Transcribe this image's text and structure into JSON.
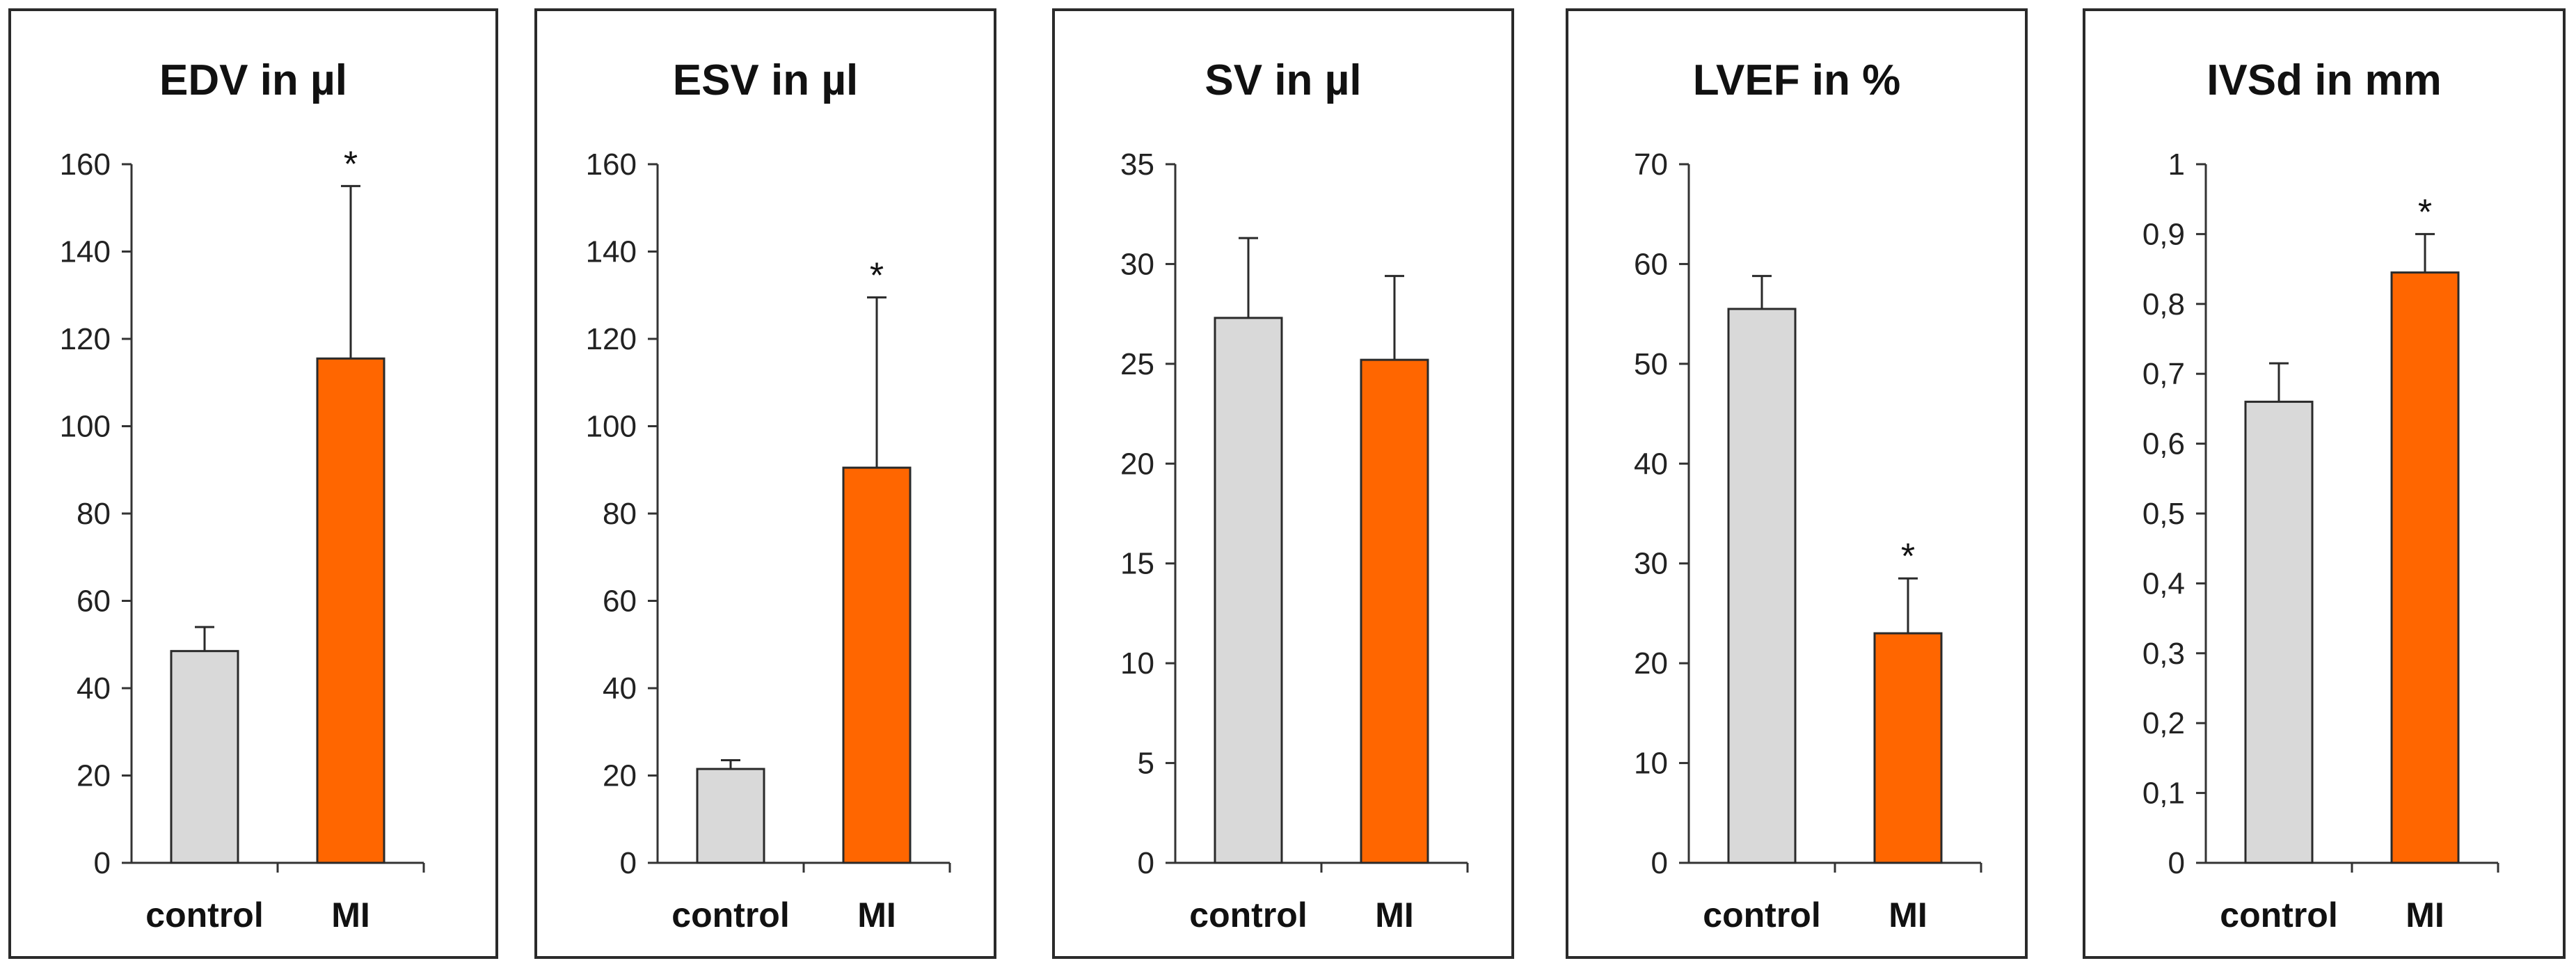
{
  "chart_data": [
    {
      "type": "bar",
      "title": "EDV in µl",
      "categories": [
        "control",
        "MI"
      ],
      "values": [
        48.5,
        115.5
      ],
      "errors": [
        5.5,
        39.5
      ],
      "significance": [
        "",
        "*"
      ],
      "colors": [
        "#d9d9d9",
        "#ff6600"
      ],
      "ylim": [
        0,
        160
      ],
      "yticks": [
        0,
        20,
        40,
        60,
        80,
        100,
        120,
        140,
        160
      ],
      "ytick_labels": [
        "0",
        "20",
        "40",
        "60",
        "80",
        "100",
        "120",
        "140",
        "160"
      ]
    },
    {
      "type": "bar",
      "title": "ESV in µl",
      "categories": [
        "control",
        "MI"
      ],
      "values": [
        21.5,
        90.5
      ],
      "errors": [
        2,
        39
      ],
      "significance": [
        "",
        "*"
      ],
      "colors": [
        "#d9d9d9",
        "#ff6600"
      ],
      "ylim": [
        0,
        160
      ],
      "yticks": [
        0,
        20,
        40,
        60,
        80,
        100,
        120,
        140,
        160
      ],
      "ytick_labels": [
        "0",
        "20",
        "40",
        "60",
        "80",
        "100",
        "120",
        "140",
        "160"
      ]
    },
    {
      "type": "bar",
      "title": "SV in µl",
      "categories": [
        "control",
        "MI"
      ],
      "values": [
        27.3,
        25.2
      ],
      "errors": [
        4,
        4.2
      ],
      "significance": [
        "",
        ""
      ],
      "colors": [
        "#d9d9d9",
        "#ff6600"
      ],
      "ylim": [
        0,
        35
      ],
      "yticks": [
        0,
        5,
        10,
        15,
        20,
        25,
        30,
        35
      ],
      "ytick_labels": [
        "0",
        "5",
        "10",
        "15",
        "20",
        "25",
        "30",
        "35"
      ]
    },
    {
      "type": "bar",
      "title": "LVEF in %",
      "categories": [
        "control",
        "MI"
      ],
      "values": [
        55.5,
        23
      ],
      "errors": [
        3.3,
        5.5
      ],
      "significance": [
        "",
        "*"
      ],
      "colors": [
        "#d9d9d9",
        "#ff6600"
      ],
      "ylim": [
        0,
        70
      ],
      "yticks": [
        0,
        10,
        20,
        30,
        40,
        50,
        60,
        70
      ],
      "ytick_labels": [
        "0",
        "10",
        "20",
        "30",
        "40",
        "50",
        "60",
        "70"
      ]
    },
    {
      "type": "bar",
      "title": "IVSd in mm",
      "categories": [
        "control",
        "MI"
      ],
      "values": [
        0.66,
        0.845
      ],
      "errors": [
        0.055,
        0.055
      ],
      "significance": [
        "",
        "*"
      ],
      "colors": [
        "#d9d9d9",
        "#ff6600"
      ],
      "ylim": [
        0,
        1
      ],
      "yticks": [
        0,
        0.1,
        0.2,
        0.3,
        0.4,
        0.5,
        0.6,
        0.7,
        0.8,
        0.9,
        1
      ],
      "ytick_labels": [
        "0",
        "0,1",
        "0,2",
        "0,3",
        "0,4",
        "0,5",
        "0,6",
        "0,7",
        "0,8",
        "0,9",
        "1"
      ]
    }
  ]
}
